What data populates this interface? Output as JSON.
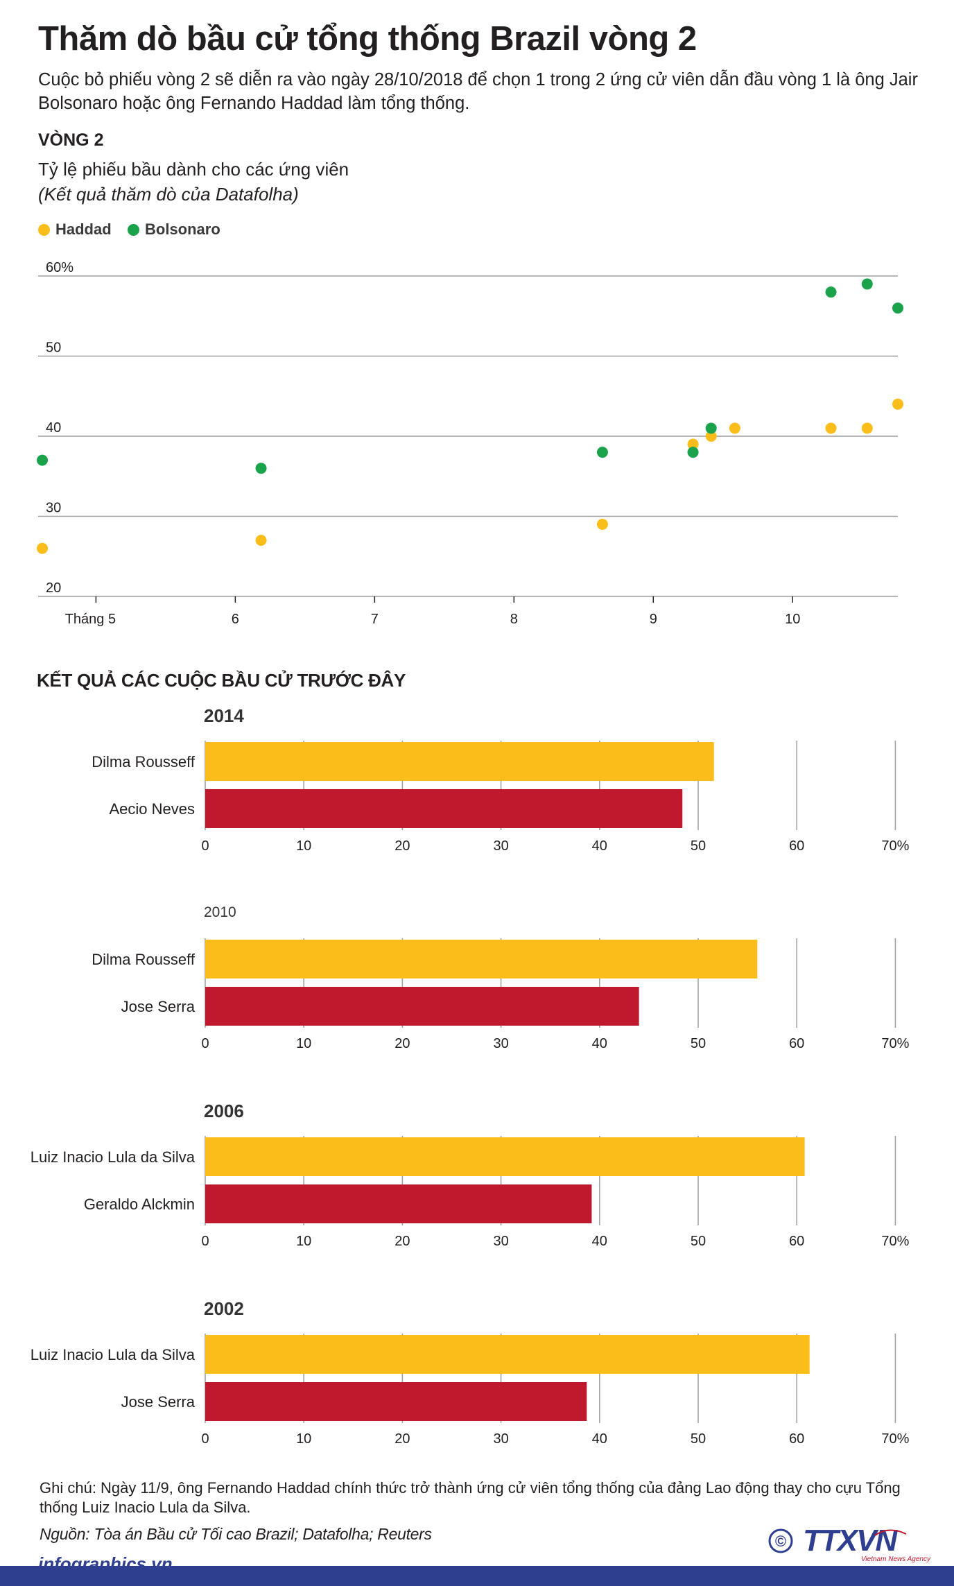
{
  "title": "Thăm dò bầu cử tổng thống Brazil vòng 2",
  "subtitle": "Cuộc bỏ phiếu vòng 2 sẽ diễn ra vào ngày 28/10/2018 để chọn 1 trong 2 ứng cử viên dẫn đầu vòng 1 là ông Jair Bolsonaro hoặc ông Fernando Haddad làm tổng thống.",
  "round_label": "VÒNG 2",
  "chart_desc": "Tỷ lệ phiếu bầu dành cho các ứng viên",
  "chart_source": "(Kết quả thăm dò của Datafolha)",
  "colors": {
    "haddad": "#fbbd1a",
    "bolsonaro": "#1aa34a",
    "winner_bar": "#fbbd1a",
    "loser_bar": "#c0192d",
    "grid": "#9d9d9d",
    "footer": "#2e3f8f"
  },
  "chart_data": [
    {
      "type": "scatter",
      "title": "Tỷ lệ phiếu bầu dành cho các ứng viên",
      "xlabel": "",
      "ylabel": "",
      "ylim": [
        20,
        60
      ],
      "y_ticks": [
        "60%",
        "50",
        "40",
        "30",
        "20"
      ],
      "y_tick_values": [
        60,
        50,
        40,
        30,
        20
      ],
      "xlim": [
        4.6,
        10.77
      ],
      "x_ticks": [
        "Tháng 5",
        "6",
        "7",
        "8",
        "9",
        "10"
      ],
      "x_tick_values": [
        5,
        6,
        7,
        8,
        9,
        10
      ],
      "legend": [
        "Haddad",
        "Bolsonaro"
      ],
      "series": [
        {
          "name": "Haddad",
          "color": "#fbbd1a",
          "points": [
            [
              4.63,
              26
            ],
            [
              6.2,
              27
            ],
            [
              8.65,
              29
            ],
            [
              9.3,
              39
            ],
            [
              9.43,
              40
            ],
            [
              9.6,
              41
            ],
            [
              10.29,
              41
            ],
            [
              10.55,
              41
            ],
            [
              10.77,
              44
            ]
          ]
        },
        {
          "name": "Bolsonaro",
          "color": "#1aa34a",
          "points": [
            [
              4.63,
              37
            ],
            [
              6.2,
              36
            ],
            [
              8.65,
              38
            ],
            [
              9.3,
              38
            ],
            [
              9.43,
              41
            ],
            [
              10.29,
              58
            ],
            [
              10.55,
              59
            ],
            [
              10.77,
              56
            ]
          ]
        }
      ]
    },
    {
      "type": "bar",
      "orientation": "horizontal",
      "title": "2014",
      "categories": [
        "Dilma Rousseff",
        "Aecio Neves"
      ],
      "values": [
        51.6,
        48.4
      ],
      "xlim": [
        0,
        70
      ],
      "x_ticks": [
        "0",
        "10",
        "20",
        "30",
        "40",
        "50",
        "60",
        "70%"
      ]
    },
    {
      "type": "bar",
      "orientation": "horizontal",
      "title": "2010",
      "categories": [
        "Dilma Rousseff",
        "Jose Serra"
      ],
      "values": [
        56,
        44
      ],
      "xlim": [
        0,
        70
      ],
      "x_ticks": [
        "0",
        "10",
        "20",
        "30",
        "40",
        "50",
        "60",
        "70%"
      ]
    },
    {
      "type": "bar",
      "orientation": "horizontal",
      "title": "2006",
      "categories": [
        "Luiz Inacio Lula da Silva",
        "Geraldo Alckmin"
      ],
      "values": [
        60.8,
        39.2
      ],
      "xlim": [
        0,
        70
      ],
      "x_ticks": [
        "0",
        "10",
        "20",
        "30",
        "40",
        "50",
        "60",
        "70%"
      ]
    },
    {
      "type": "bar",
      "orientation": "horizontal",
      "title": "2002",
      "categories": [
        "Luiz Inacio Lula da Silva",
        "Jose Serra"
      ],
      "values": [
        61.3,
        38.7
      ],
      "xlim": [
        0,
        70
      ],
      "x_ticks": [
        "0",
        "10",
        "20",
        "30",
        "40",
        "50",
        "60",
        "70%"
      ]
    }
  ],
  "previous_heading": "KẾT QUẢ CÁC CUỘC BẦU CỬ TRƯỚC ĐÂY",
  "note": "Ghi chú: Ngày 11/9, ông Fernando Haddad chính thức trở thành ứng cử viên tổng thống của đảng Lao động thay cho cựu Tổng thống Luiz Inacio Lula da Silva.",
  "source": "Nguồn: Tòa án Bầu cử Tối cao Brazil; Datafolha; Reuters",
  "logo": {
    "mark": "TTXVN",
    "tagline": "Vietnam News Agency",
    "copyright": "©"
  },
  "footer_site": "infographics.vn"
}
